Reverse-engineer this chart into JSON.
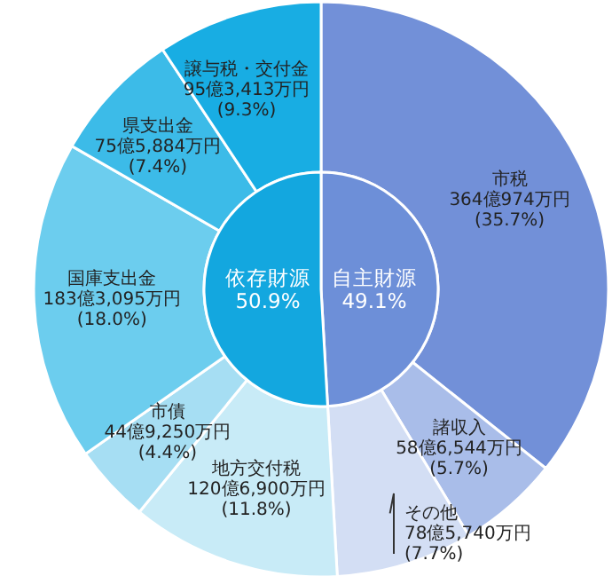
{
  "chart_data": [
    {
      "type": "donut",
      "categories": [
        "市税",
        "諸収入",
        "その他",
        "地方交付税",
        "市債",
        "国庫支出金",
        "県支出金",
        "譲与税・交付金"
      ],
      "values": [
        35.7,
        5.7,
        7.7,
        11.8,
        4.4,
        18.0,
        7.4,
        9.3
      ],
      "value_labels": [
        "364億974万円\n(35.7%)",
        "58億6,544万円\n(5.7%)",
        "78億5,740万円\n(7.7%)",
        "120億6,900万円\n(11.8%)",
        "44億9,250万円\n(4.4%)",
        "183億3,095万円\n(18.0%)",
        "75億5,884万円\n(7.4%)",
        "95億3,413万円\n(9.3%)"
      ],
      "colors": [
        "#7290d8",
        "#a9bde9",
        "#d3def4",
        "#c8ebf7",
        "#a6def3",
        "#6ccdee",
        "#3cbbe8",
        "#18ade3"
      ]
    },
    {
      "type": "pie",
      "categories": [
        "自主財源",
        "依存財源"
      ],
      "values": [
        49.1,
        50.9
      ],
      "value_labels": [
        "49.1%",
        "50.9%"
      ],
      "colors": [
        "#6d8fd8",
        "#13a7df"
      ]
    }
  ]
}
